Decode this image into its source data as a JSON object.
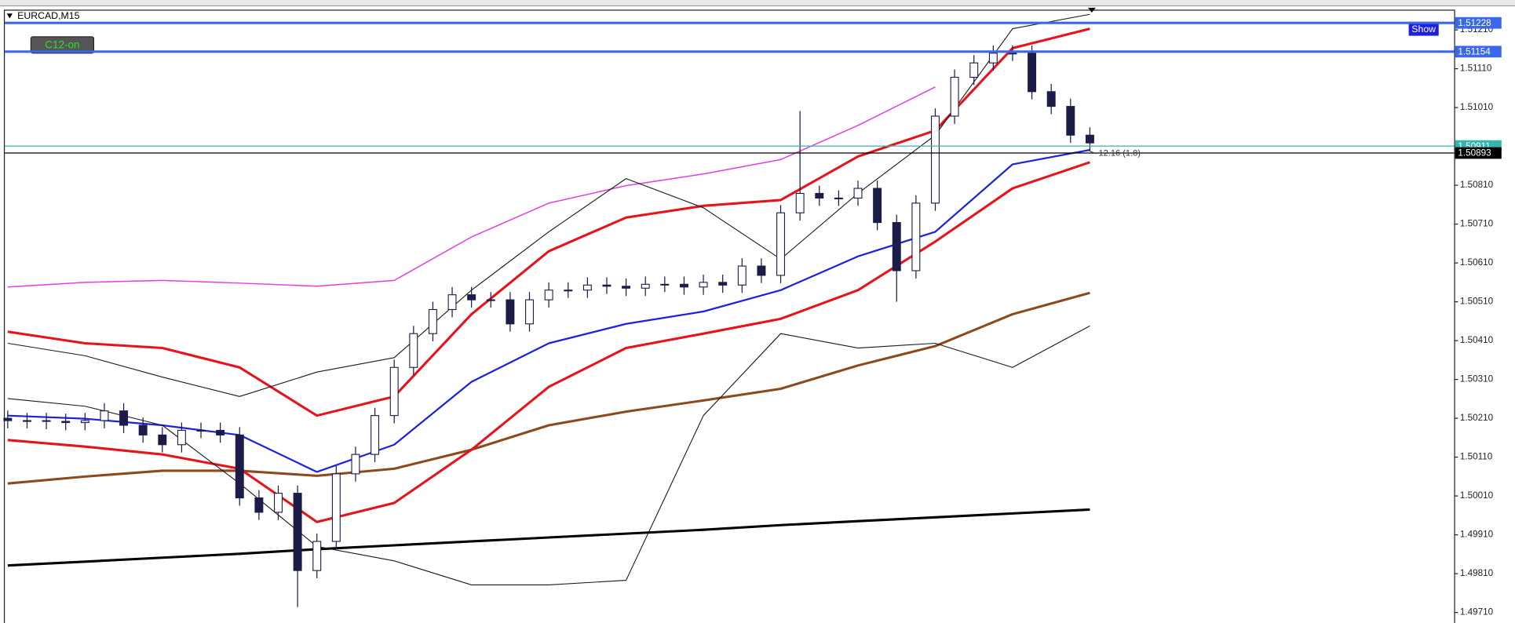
{
  "chart_data": {
    "type": "candlestick",
    "title": "EURCAD,M15",
    "indicator_button": "C12-on",
    "show_button": "Show",
    "annotation": "12.16 (1.8)",
    "ylim": [
      1.49683,
      1.51262
    ],
    "yticks": [
      {
        "value": 1.5121,
        "label": "1.51210"
      },
      {
        "value": 1.5111,
        "label": "1.51110"
      },
      {
        "value": 1.5101,
        "label": "1.51010"
      },
      {
        "value": 1.5081,
        "label": "1.50810"
      },
      {
        "value": 1.5071,
        "label": "1.50710"
      },
      {
        "value": 1.5061,
        "label": "1.50610"
      },
      {
        "value": 1.5051,
        "label": "1.50510"
      },
      {
        "value": 1.5041,
        "label": "1.50410"
      },
      {
        "value": 1.5031,
        "label": "1.50310"
      },
      {
        "value": 1.5021,
        "label": "1.50210"
      },
      {
        "value": 1.5011,
        "label": "1.50110"
      },
      {
        "value": 1.5001,
        "label": "1.50010"
      },
      {
        "value": 1.4991,
        "label": "1.49910"
      },
      {
        "value": 1.4981,
        "label": "1.49810"
      },
      {
        "value": 1.4971,
        "label": "1.49710"
      }
    ],
    "candle_color": "#1c1c48",
    "open": [
      1.5021,
      1.50204,
      1.50204,
      1.50202,
      1.50199,
      1.50204,
      1.50229,
      1.50192,
      1.50167,
      1.50142,
      1.50179,
      1.50179,
      1.50167,
      1.50005,
      1.49968,
      1.50017,
      1.49818,
      1.49893,
      1.50067,
      1.50117,
      1.50217,
      1.50341,
      1.50428,
      1.5049,
      1.50528,
      1.50515,
      1.50515,
      1.50453,
      1.50515,
      1.5054,
      1.5054,
      1.50553,
      1.5055,
      1.50545,
      1.50555,
      1.50555,
      1.50548,
      1.5056,
      1.50553,
      1.50602,
      1.50578,
      1.50739,
      1.50789,
      1.50777,
      1.50777,
      1.50802,
      1.50714,
      1.5059,
      1.50764,
      1.50988,
      1.51088,
      1.51125,
      1.5115,
      1.5115,
      1.51051,
      1.51013,
      1.50939
    ],
    "high": [
      1.5023,
      1.50224,
      1.50224,
      1.50222,
      1.50224,
      1.50249,
      1.50249,
      1.50212,
      1.50187,
      1.50199,
      1.50199,
      1.50199,
      1.50187,
      1.50025,
      1.50037,
      1.50037,
      1.49913,
      1.50087,
      1.50137,
      1.50237,
      1.50361,
      1.50448,
      1.5051,
      1.50548,
      1.50548,
      1.50535,
      1.50535,
      1.50535,
      1.5056,
      1.5056,
      1.50573,
      1.50573,
      1.5057,
      1.50575,
      1.50575,
      1.50575,
      1.5058,
      1.5058,
      1.50622,
      1.50622,
      1.50759,
      1.51001,
      1.50809,
      1.50797,
      1.50822,
      1.50822,
      1.50734,
      1.50784,
      1.51008,
      1.51108,
      1.51145,
      1.5117,
      1.5117,
      1.5117,
      1.51071,
      1.51033,
      1.50959
    ],
    "low": [
      1.50184,
      1.50184,
      1.50182,
      1.50179,
      1.50179,
      1.50184,
      1.50172,
      1.50147,
      1.50122,
      1.50122,
      1.50159,
      1.50147,
      1.49985,
      1.49948,
      1.49948,
      1.49724,
      1.49798,
      1.49873,
      1.50047,
      1.50097,
      1.50197,
      1.50321,
      1.50408,
      1.5047,
      1.50495,
      1.50495,
      1.50433,
      1.50433,
      1.50495,
      1.5052,
      1.5052,
      1.5053,
      1.50525,
      1.50525,
      1.50535,
      1.50528,
      1.50528,
      1.50533,
      1.50533,
      1.50558,
      1.50558,
      1.50719,
      1.50757,
      1.50757,
      1.50757,
      1.50694,
      1.5051,
      1.5057,
      1.50744,
      1.50968,
      1.51068,
      1.51105,
      1.5113,
      1.51031,
      1.50993,
      1.50919,
      1.50899
    ],
    "close": [
      1.50204,
      1.50204,
      1.50202,
      1.50199,
      1.50204,
      1.50229,
      1.50192,
      1.50167,
      1.50142,
      1.50179,
      1.50179,
      1.50167,
      1.50005,
      1.49968,
      1.50017,
      1.49818,
      1.49893,
      1.50067,
      1.50117,
      1.50217,
      1.50341,
      1.50428,
      1.5049,
      1.50528,
      1.50515,
      1.50515,
      1.50453,
      1.50515,
      1.5054,
      1.5054,
      1.50553,
      1.5055,
      1.50545,
      1.50555,
      1.50555,
      1.50548,
      1.5056,
      1.50553,
      1.50602,
      1.50578,
      1.50739,
      1.50789,
      1.50777,
      1.50777,
      1.50802,
      1.50714,
      1.5059,
      1.50764,
      1.50988,
      1.51088,
      1.51125,
      1.5115,
      1.5115,
      1.51051,
      1.51013,
      1.50939,
      1.50919
    ],
    "series": [
      {
        "color": "#000000",
        "line_width": 2.5,
        "values": [
          1.49831,
          1.49841,
          1.49851,
          1.49861,
          1.49873,
          1.49883,
          1.49893,
          1.49903,
          1.49913,
          1.49923,
          1.49935,
          1.49945,
          1.49955,
          1.49965,
          1.49975
        ]
      },
      {
        "color": "#8b4a1c",
        "line_width": 2.5,
        "values": [
          1.50042,
          1.5006,
          1.50075,
          1.50075,
          1.50062,
          1.5008,
          1.50129,
          1.50192,
          1.50227,
          1.50256,
          1.50286,
          1.50346,
          1.50396,
          1.50478,
          1.50533
        ]
      },
      {
        "color": "#e8121b",
        "line_width": 2.5,
        "values": [
          1.50154,
          1.50137,
          1.50117,
          1.5008,
          1.49943,
          1.49992,
          1.50129,
          1.50291,
          1.50391,
          1.50428,
          1.50466,
          1.5054,
          1.50665,
          1.50802,
          1.50869
        ]
      },
      {
        "color": "#1a22e0",
        "line_width": 1.8,
        "values": [
          1.50217,
          1.50209,
          1.50192,
          1.50167,
          1.50072,
          1.50142,
          1.50304,
          1.50403,
          1.50453,
          1.50485,
          1.5054,
          1.50627,
          1.5069,
          1.50864,
          1.50901
        ]
      },
      {
        "color": "#e8121b",
        "line_width": 2.5,
        "values": [
          1.50433,
          1.50403,
          1.50391,
          1.50341,
          1.50217,
          1.50266,
          1.50478,
          1.5064,
          1.50727,
          1.50757,
          1.50772,
          1.50884,
          1.50951,
          1.51163,
          1.51213
        ]
      },
      {
        "color": "#e23ce2",
        "line_width": 1.2,
        "values": [
          1.50548,
          1.5056,
          1.50565,
          1.50558,
          1.5055,
          1.50565,
          1.50677,
          1.50764,
          1.50809,
          1.50839,
          1.50876,
          1.50964,
          1.51063,
          null,
          null
        ]
      },
      {
        "color": "#1a1a1a",
        "line_width": 0.9,
        "values": [
          1.50403,
          1.50371,
          1.50316,
          1.50266,
          1.50329,
          1.50366,
          1.5054,
          1.5069,
          1.50827,
          1.50752,
          1.5062,
          1.50789,
          1.50939,
          1.51213,
          1.5125
        ]
      },
      {
        "color": "#1a1a1a",
        "line_width": 0.9,
        "values": [
          1.50261,
          1.50241,
          1.50192,
          1.50042,
          1.4988,
          1.49843,
          1.49781,
          1.49781,
          1.49793,
          1.50217,
          1.50428,
          1.50391,
          1.50403,
          1.50341,
          1.50448
        ]
      }
    ],
    "levels": [
      {
        "value": 1.51228,
        "color": "#3b68e8"
      },
      {
        "value": 1.51154,
        "color": "#3b68e8"
      },
      {
        "value": 1.50911,
        "color": "#35b5ad"
      },
      {
        "value": 1.50893,
        "color": "#000000"
      }
    ]
  }
}
